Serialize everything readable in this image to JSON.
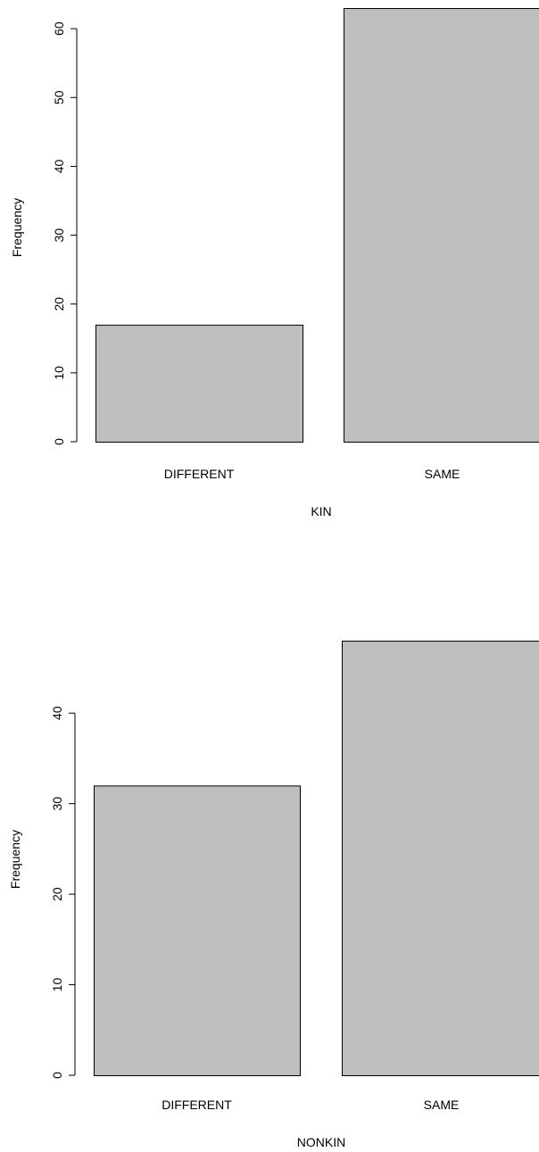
{
  "chart_data": [
    {
      "type": "bar",
      "categories": [
        "DIFFERENT",
        "SAME"
      ],
      "values": [
        17,
        63
      ],
      "xlabel": "KIN",
      "ylabel": "Frequency",
      "yticks": [
        0,
        10,
        20,
        30,
        40,
        50,
        60
      ],
      "ylim": [
        0,
        63
      ],
      "bar_fill": "#bebebe",
      "bar_stroke": "#000000",
      "grid": false,
      "legend": false
    },
    {
      "type": "bar",
      "categories": [
        "DIFFERENT",
        "SAME"
      ],
      "values": [
        32,
        48
      ],
      "xlabel": "NONKIN",
      "ylabel": "Frequency",
      "yticks": [
        0,
        10,
        20,
        30,
        40
      ],
      "ylim": [
        0,
        48
      ],
      "bar_fill": "#bebebe",
      "bar_stroke": "#000000",
      "grid": false,
      "legend": false
    }
  ]
}
